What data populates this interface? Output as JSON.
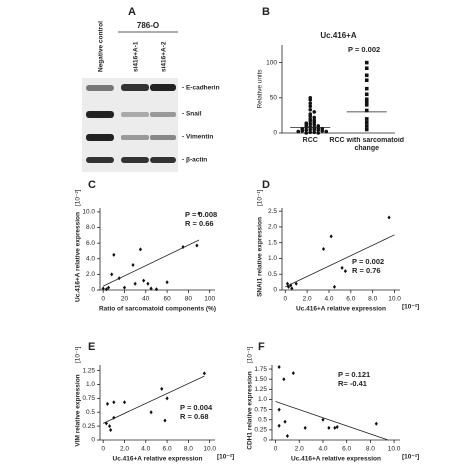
{
  "blot": {
    "panel": "A",
    "cell_line": "786-O",
    "lanes": [
      "Negative control",
      "si416+A-1",
      "si416+A-2"
    ],
    "proteins": [
      "- E-cadherin",
      "- Snail",
      "- Vimentin",
      "- β-actin"
    ]
  },
  "chart_data": [
    {
      "type": "strip",
      "panel": "B",
      "title": "Uc.416+A",
      "y_label": "Relative units",
      "annotation": "P = 0.002",
      "categories": [
        "RCC",
        "RCC with sarcomatoid change"
      ],
      "series": [
        {
          "values": [
            50,
            47,
            42,
            38,
            33,
            30,
            27,
            24,
            22,
            20,
            18,
            17,
            15,
            14,
            13,
            12,
            11,
            10,
            9,
            8,
            8,
            7,
            6,
            6,
            5,
            5,
            4,
            4,
            3,
            3,
            2,
            2,
            1,
            1,
            0,
            0
          ]
        },
        {
          "values": [
            100,
            92,
            82,
            75,
            63,
            55,
            48,
            45,
            40,
            32,
            20,
            15,
            10,
            5
          ]
        }
      ],
      "medians": [
        8,
        30
      ],
      "ylim": [
        0,
        125
      ],
      "yticks": [
        0,
        50,
        100
      ]
    },
    {
      "type": "scatter",
      "panel": "C",
      "y_label": "Uc.416+A relative expression",
      "y_unit": "[10⁻²]",
      "x_label": "Ratio of sarcomatoid components (%)",
      "annotations": [
        "P = 0.008",
        "R = 0.66"
      ],
      "x": [
        90,
        88,
        75,
        35,
        10,
        28,
        8,
        15,
        38,
        30,
        60,
        42,
        45,
        20,
        5,
        0,
        3,
        50
      ],
      "values": [
        9.8,
        5.7,
        5.5,
        5.2,
        4.5,
        3.2,
        2.0,
        1.5,
        1.2,
        0.8,
        1.0,
        0.8,
        0.2,
        0.3,
        0.3,
        0.2,
        0.1,
        0.1
      ],
      "fit": {
        "x": [
          0,
          90
        ],
        "y": [
          0.5,
          6.4
        ]
      },
      "xlim": [
        -3,
        105
      ],
      "ylim": [
        0,
        10.5
      ],
      "xticks": [
        0,
        20,
        40,
        60,
        80,
        100
      ],
      "yticks": [
        0,
        {
          "value": 2,
          "label": "2.0"
        },
        {
          "value": 4,
          "label": "4.0"
        },
        {
          "value": 6,
          "label": "6.0"
        },
        {
          "value": 8,
          "label": "8.0"
        },
        {
          "value": 10,
          "label": "10.0"
        }
      ]
    },
    {
      "type": "scatter",
      "panel": "D",
      "y_label": "SNAI1 relative expression",
      "y_unit": "[10⁻¹]",
      "x_label": "Uc.416+A relative expression",
      "x_unit": "[10⁻²]",
      "annotations": [
        "P = 0.002",
        "R = 0.76"
      ],
      "x": [
        9.5,
        4.2,
        3.5,
        5.2,
        5.5,
        0.2,
        0.5,
        0.3,
        1.0,
        4.5,
        0.6
      ],
      "values": [
        2.3,
        1.7,
        1.3,
        0.7,
        0.6,
        0.2,
        0.15,
        0.1,
        0.2,
        0.1,
        0.05
      ],
      "fit": {
        "x": [
          0,
          10
        ],
        "y": [
          0.1,
          1.75
        ]
      },
      "xlim": [
        -0.3,
        10.5
      ],
      "ylim": [
        0,
        2.6
      ],
      "xticks": [
        0,
        {
          "value": 2,
          "label": "2.0"
        },
        {
          "value": 4,
          "label": "4.0"
        },
        {
          "value": 6,
          "label": "6.0"
        },
        {
          "value": 8,
          "label": "8.0"
        },
        {
          "value": 10,
          "label": "10.0"
        }
      ],
      "yticks": [
        0,
        0.5,
        {
          "value": 1,
          "label": "1.0"
        },
        1.5,
        {
          "value": 2,
          "label": "2.0"
        },
        2.5
      ]
    },
    {
      "type": "scatter",
      "panel": "E",
      "y_label": "VIM relative expression",
      "y_unit": "[10⁻¹]",
      "x_label": "Uc.416+A relative expression",
      "x_unit": "[10⁻²]",
      "annotations": [
        "P = 0.004",
        "R = 0.68"
      ],
      "x": [
        9.5,
        5.5,
        6,
        2.0,
        1.0,
        0.4,
        4.5,
        1.0,
        0.3,
        0.6,
        0.7,
        5.8
      ],
      "values": [
        1.2,
        0.92,
        0.75,
        0.68,
        0.68,
        0.65,
        0.5,
        0.4,
        0.3,
        0.25,
        0.18,
        0.35
      ],
      "fit": {
        "x": [
          0,
          9.5
        ],
        "y": [
          0.3,
          1.15
        ]
      },
      "xlim": [
        -0.3,
        10.5
      ],
      "ylim": [
        0,
        1.35
      ],
      "xticks": [
        0,
        {
          "value": 2,
          "label": "2.0"
        },
        {
          "value": 4,
          "label": "4.0"
        },
        {
          "value": 6,
          "label": "6.0"
        },
        {
          "value": 8,
          "label": "8.0"
        },
        {
          "value": 10,
          "label": "10.0"
        }
      ],
      "yticks": [
        0,
        0.25,
        0.5,
        0.75,
        {
          "value": 1,
          "label": "1.0"
        },
        1.25
      ]
    },
    {
      "type": "scatter",
      "panel": "F",
      "y_label": "CDH1 relative expression",
      "y_unit": "[10⁻¹]",
      "x_label": "Uc.416+A relative expression",
      "x_unit": "[10⁻²]",
      "annotations": [
        "P = 0.121",
        "R= -0.41"
      ],
      "x": [
        0.3,
        1.5,
        0.7,
        0.3,
        0.8,
        0.3,
        4.0,
        4.5,
        5.0,
        5.2,
        2.5,
        8.5,
        1.0
      ],
      "values": [
        1.8,
        1.65,
        1.5,
        0.75,
        0.45,
        0.35,
        0.5,
        0.3,
        0.3,
        0.32,
        0.3,
        0.4,
        0.1
      ],
      "fit": {
        "x": [
          0,
          9.5
        ],
        "y": [
          0.95,
          0
        ]
      },
      "xlim": [
        -0.3,
        10.5
      ],
      "ylim": [
        0,
        1.85
      ],
      "xticks": [
        0,
        {
          "value": 2,
          "label": "2.0"
        },
        {
          "value": 4,
          "label": "4.0"
        },
        {
          "value": 6,
          "label": "6.0"
        },
        {
          "value": 8,
          "label": "8.0"
        },
        {
          "value": 10,
          "label": "10.0"
        }
      ],
      "yticks": [
        0,
        0.25,
        0.5,
        0.75,
        {
          "value": 1,
          "label": "1.0"
        },
        1.25,
        {
          "value": 1.5,
          "label": "1.50"
        },
        1.75
      ]
    }
  ]
}
